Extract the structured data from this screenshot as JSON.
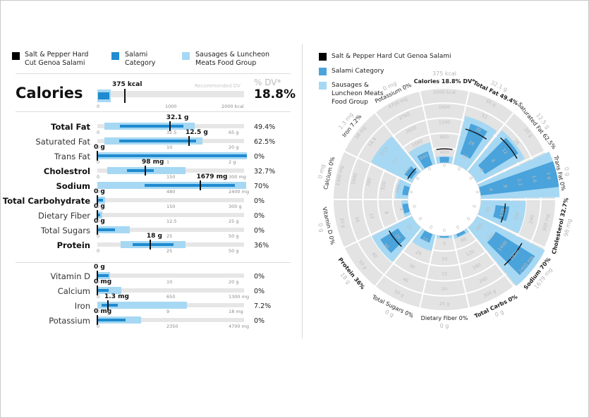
{
  "legend": {
    "product": "Salt & Pepper Hard Cut Genoa Salami",
    "category": "Salami Category",
    "group": "Sausages & Luncheon Meats Food Group",
    "colors": {
      "product": "#000000",
      "category": "#1f8bd0",
      "group": "#a6d8f3"
    }
  },
  "headers": {
    "dv": "% DV*",
    "recommended": "Recommended DV"
  },
  "calories": {
    "label": "Calories",
    "value": 375,
    "value_label": "375 kcal",
    "pct": "18.8%",
    "max": 2000,
    "ticks": [
      "0",
      "1000",
      "2000 kcal"
    ],
    "category_range": [
      10,
      160
    ],
    "group_range": [
      0,
      180
    ]
  },
  "chart_data": {
    "type": "bar",
    "title": "",
    "nutrients": [
      {
        "name": "Total Fat",
        "bold": true,
        "value": 32.1,
        "value_label": "32.1 g",
        "pct": "49.4%",
        "max": 65,
        "ticks": [
          "0",
          "32.5",
          "65 g"
        ],
        "category": [
          10,
          38
        ],
        "group": [
          3,
          43
        ]
      },
      {
        "name": "Saturated Fat",
        "bold": false,
        "value": 12.5,
        "value_label": "12.5 g",
        "pct": "62.5%",
        "max": 20,
        "ticks": [
          "0",
          "10",
          "20 g"
        ],
        "category": [
          3,
          13.5
        ],
        "group": [
          1,
          14.3
        ]
      },
      {
        "name": "Trans Fat",
        "bold": false,
        "value": 0,
        "value_label": "0 g",
        "pct": "0%",
        "max": 2,
        "ticks": [
          "0",
          "1",
          "2 g"
        ],
        "category": [
          0,
          2.1
        ],
        "group": [
          0,
          2.1
        ]
      },
      {
        "name": "Cholestrol",
        "bold": true,
        "value": 98,
        "value_label": "98 mg",
        "pct": "32.7%",
        "max": 300,
        "ticks": [
          "0",
          "150",
          "300 mg"
        ],
        "category": [
          60,
          115
        ],
        "group": [
          20,
          180
        ]
      },
      {
        "name": "Sodium",
        "bold": true,
        "value": 1679,
        "value_label": "1679 mg",
        "pct": "70%",
        "max": 2400,
        "ticks": [
          "0",
          "480",
          "2400 mg"
        ],
        "category": [
          770,
          2250
        ],
        "group": [
          0,
          2440
        ]
      },
      {
        "name": "Total Carbohydrate",
        "bold": true,
        "value": 0,
        "value_label": "0 g",
        "pct": "0%",
        "max": 300,
        "ticks": [
          "0",
          "150",
          "300 g"
        ],
        "category": [
          0,
          12
        ],
        "group": [
          0,
          16
        ]
      },
      {
        "name": "Dietary Fiber",
        "bold": false,
        "value": 0,
        "value_label": "0 g",
        "pct": "0%",
        "max": 25,
        "ticks": [
          "0",
          "12.5",
          "25 g"
        ],
        "category": [
          0,
          0.5
        ],
        "group": [
          0,
          0.8
        ]
      },
      {
        "name": "Total Sugars",
        "bold": false,
        "value": 0,
        "value_label": "0 g",
        "pct": "0%",
        "max": 50,
        "ticks": [
          "0",
          "25",
          "50 g"
        ],
        "category": [
          0,
          6
        ],
        "group": [
          0,
          11
        ]
      },
      {
        "name": "Protein",
        "bold": true,
        "value": 18,
        "value_label": "18 g",
        "pct": "36%",
        "max": 50,
        "ticks": [
          "0",
          "25",
          "50 g"
        ],
        "category": [
          12,
          26
        ],
        "group": [
          8,
          30
        ]
      },
      {
        "name": "Vitamin D",
        "bold": false,
        "value": 0,
        "value_label": "0 g",
        "pct": "0%",
        "max": 20,
        "ticks": [
          "0",
          "10",
          "20 g"
        ],
        "category": [
          0,
          1.5
        ],
        "group": [
          0,
          1.7
        ]
      },
      {
        "name": "Calcium",
        "bold": false,
        "value": 0,
        "value_label": "0 mg",
        "pct": "0%",
        "max": 1300,
        "ticks": [
          "0",
          "650",
          "1300 mg"
        ],
        "category": [
          0,
          100
        ],
        "group": [
          0,
          215
        ]
      },
      {
        "name": "Iron",
        "bold": false,
        "value": 1.3,
        "value_label": "1.3 mg",
        "pct": "7.2%",
        "max": 18,
        "ticks": [
          "0",
          "9",
          "18 mg"
        ],
        "category": [
          0.5,
          2.5
        ],
        "group": [
          0,
          11
        ]
      },
      {
        "name": "Potassium",
        "bold": false,
        "value": 0,
        "value_label": "0 mg",
        "pct": "0%",
        "max": 4700,
        "ticks": [
          "0",
          "2350",
          "4700 mg"
        ],
        "category": [
          0,
          900
        ],
        "group": [
          0,
          1400
        ]
      }
    ],
    "radial": {
      "center_ticks": {
        "calories": "375 kcal"
      },
      "sectors": [
        {
          "label": "Calories 18.8% DV*",
          "bold": true,
          "scale_labels": [
            "0",
            "400",
            "800",
            "1200",
            "1600",
            "2000 kcal"
          ]
        },
        {
          "label": "Total Fat 49.4%",
          "bold": true,
          "max_label": "32.1 g",
          "scale_labels": [
            "0",
            "13",
            "26",
            "39",
            "52",
            "65 g"
          ]
        },
        {
          "label": "Saturated Fat 62.5%",
          "bold": false,
          "max_label": "12.5 g",
          "scale_labels": [
            "0",
            "4",
            "8",
            "12",
            "16",
            "20 g"
          ]
        },
        {
          "label": "Trans Fat 0%",
          "bold": false,
          "max_label": "0 g",
          "scale_labels": [
            "0",
            ".4",
            ".8",
            "1.2",
            "1.6",
            "2 g"
          ]
        },
        {
          "label": "Cholesterol 32.7%",
          "bold": true,
          "max_label": "98 mg",
          "scale_labels": [
            "0",
            "60",
            "120",
            "180",
            "240",
            "300 mg"
          ]
        },
        {
          "label": "Sodium 70%",
          "bold": true,
          "max_label": "1679 mg",
          "scale_labels": [
            "0",
            "480",
            "960",
            "1440",
            "1920",
            "2400 mg"
          ]
        },
        {
          "label": "Total Carbs 0%",
          "bold": true,
          "max_label": "0 g",
          "scale_labels": [
            "0",
            "60",
            "120",
            "180",
            "240",
            "300 g"
          ]
        },
        {
          "label": "Dietary Fiber 0%",
          "bold": false,
          "max_label": "0 g",
          "scale_labels": [
            "0",
            "5",
            "10",
            "15",
            "20",
            "25 g"
          ]
        },
        {
          "label": "Total Sugars 0%",
          "bold": false,
          "max_label": "0 g",
          "scale_labels": [
            "0",
            "10",
            "20",
            "30",
            "40",
            "50 g"
          ]
        },
        {
          "label": "Protein 36%",
          "bold": true,
          "max_label": "18 g",
          "scale_labels": [
            "0",
            "10",
            "20",
            "30",
            "40",
            "50 g"
          ]
        },
        {
          "label": "Vitamin D 0%",
          "bold": false,
          "max_label": "0 g",
          "scale_labels": [
            "0",
            "4",
            "8",
            "12",
            "16",
            "20 g"
          ]
        },
        {
          "label": "Calcium 0%",
          "bold": false,
          "max_label": "0 mg",
          "scale_labels": [
            "0",
            "260",
            "520",
            "780",
            "1040",
            "1300 mg"
          ]
        },
        {
          "label": "Iron 7.2%",
          "bold": false,
          "max_label": "1.3 mg",
          "scale_labels": [
            "0",
            "3.6",
            "7.2",
            "10.8",
            "14.4",
            "18 mg"
          ]
        },
        {
          "label": "Potassium 0%",
          "bold": false,
          "max_label": "0 mg",
          "scale_labels": [
            "0",
            "940",
            "1880",
            "2820",
            "3760",
            "4700 mg"
          ]
        }
      ]
    }
  }
}
